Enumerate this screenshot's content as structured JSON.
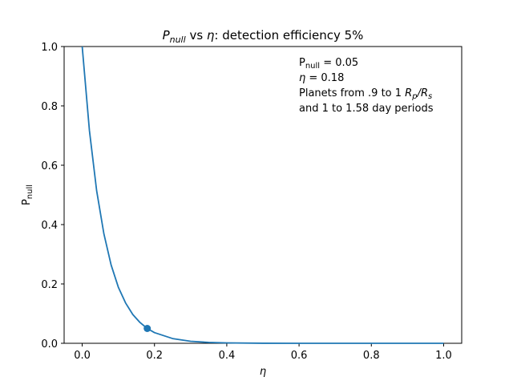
{
  "chart_data": {
    "type": "line",
    "title": {
      "p_main": "P",
      "p_sub": "null",
      "vs": " vs ",
      "eta": "η",
      "rest": ": detection efficiency 5%"
    },
    "xlabel": "η",
    "ylabel": {
      "main": "P",
      "sub": "null"
    },
    "xlim": [
      -0.05,
      1.05
    ],
    "ylim": [
      0.0,
      1.0
    ],
    "xticks": [
      "0.0",
      "0.2",
      "0.4",
      "0.6",
      "0.8",
      "1.0"
    ],
    "yticks": [
      "0.0",
      "0.2",
      "0.4",
      "0.6",
      "0.8",
      "1.0"
    ],
    "grid": false,
    "series": [
      {
        "color": "#1f77b4",
        "formula_hint": "exponential decay from 1 at eta=0",
        "x": [
          0.0,
          0.02,
          0.04,
          0.06,
          0.08,
          0.1,
          0.12,
          0.14,
          0.16,
          0.18,
          0.2,
          0.25,
          0.3,
          0.35,
          0.4,
          0.5,
          0.6,
          0.7,
          0.8,
          0.9,
          1.0
        ],
        "y": [
          1.0,
          0.717,
          0.514,
          0.369,
          0.264,
          0.189,
          0.136,
          0.097,
          0.07,
          0.05,
          0.036,
          0.016,
          0.0068,
          0.003,
          0.0013,
          0.0002,
          4e-05,
          1e-05,
          0.0,
          0.0,
          0.0
        ]
      }
    ],
    "marker": {
      "x": 0.18,
      "y": 0.05,
      "color": "#1f77b4"
    },
    "annotation": {
      "line1_main": "P",
      "line1_sub": "null",
      "line1_rest": " = 0.05",
      "line2_eta": "η",
      "line2_rest": " = 0.18",
      "line3_prefix": "Planets from .9 to 1 ",
      "line3_rp": "R",
      "line3_rp_sub": "p",
      "line3_slash": "/",
      "line3_rs": "R",
      "line3_rs_sub": "s",
      "line4": "and 1 to 1.58 day periods"
    }
  }
}
